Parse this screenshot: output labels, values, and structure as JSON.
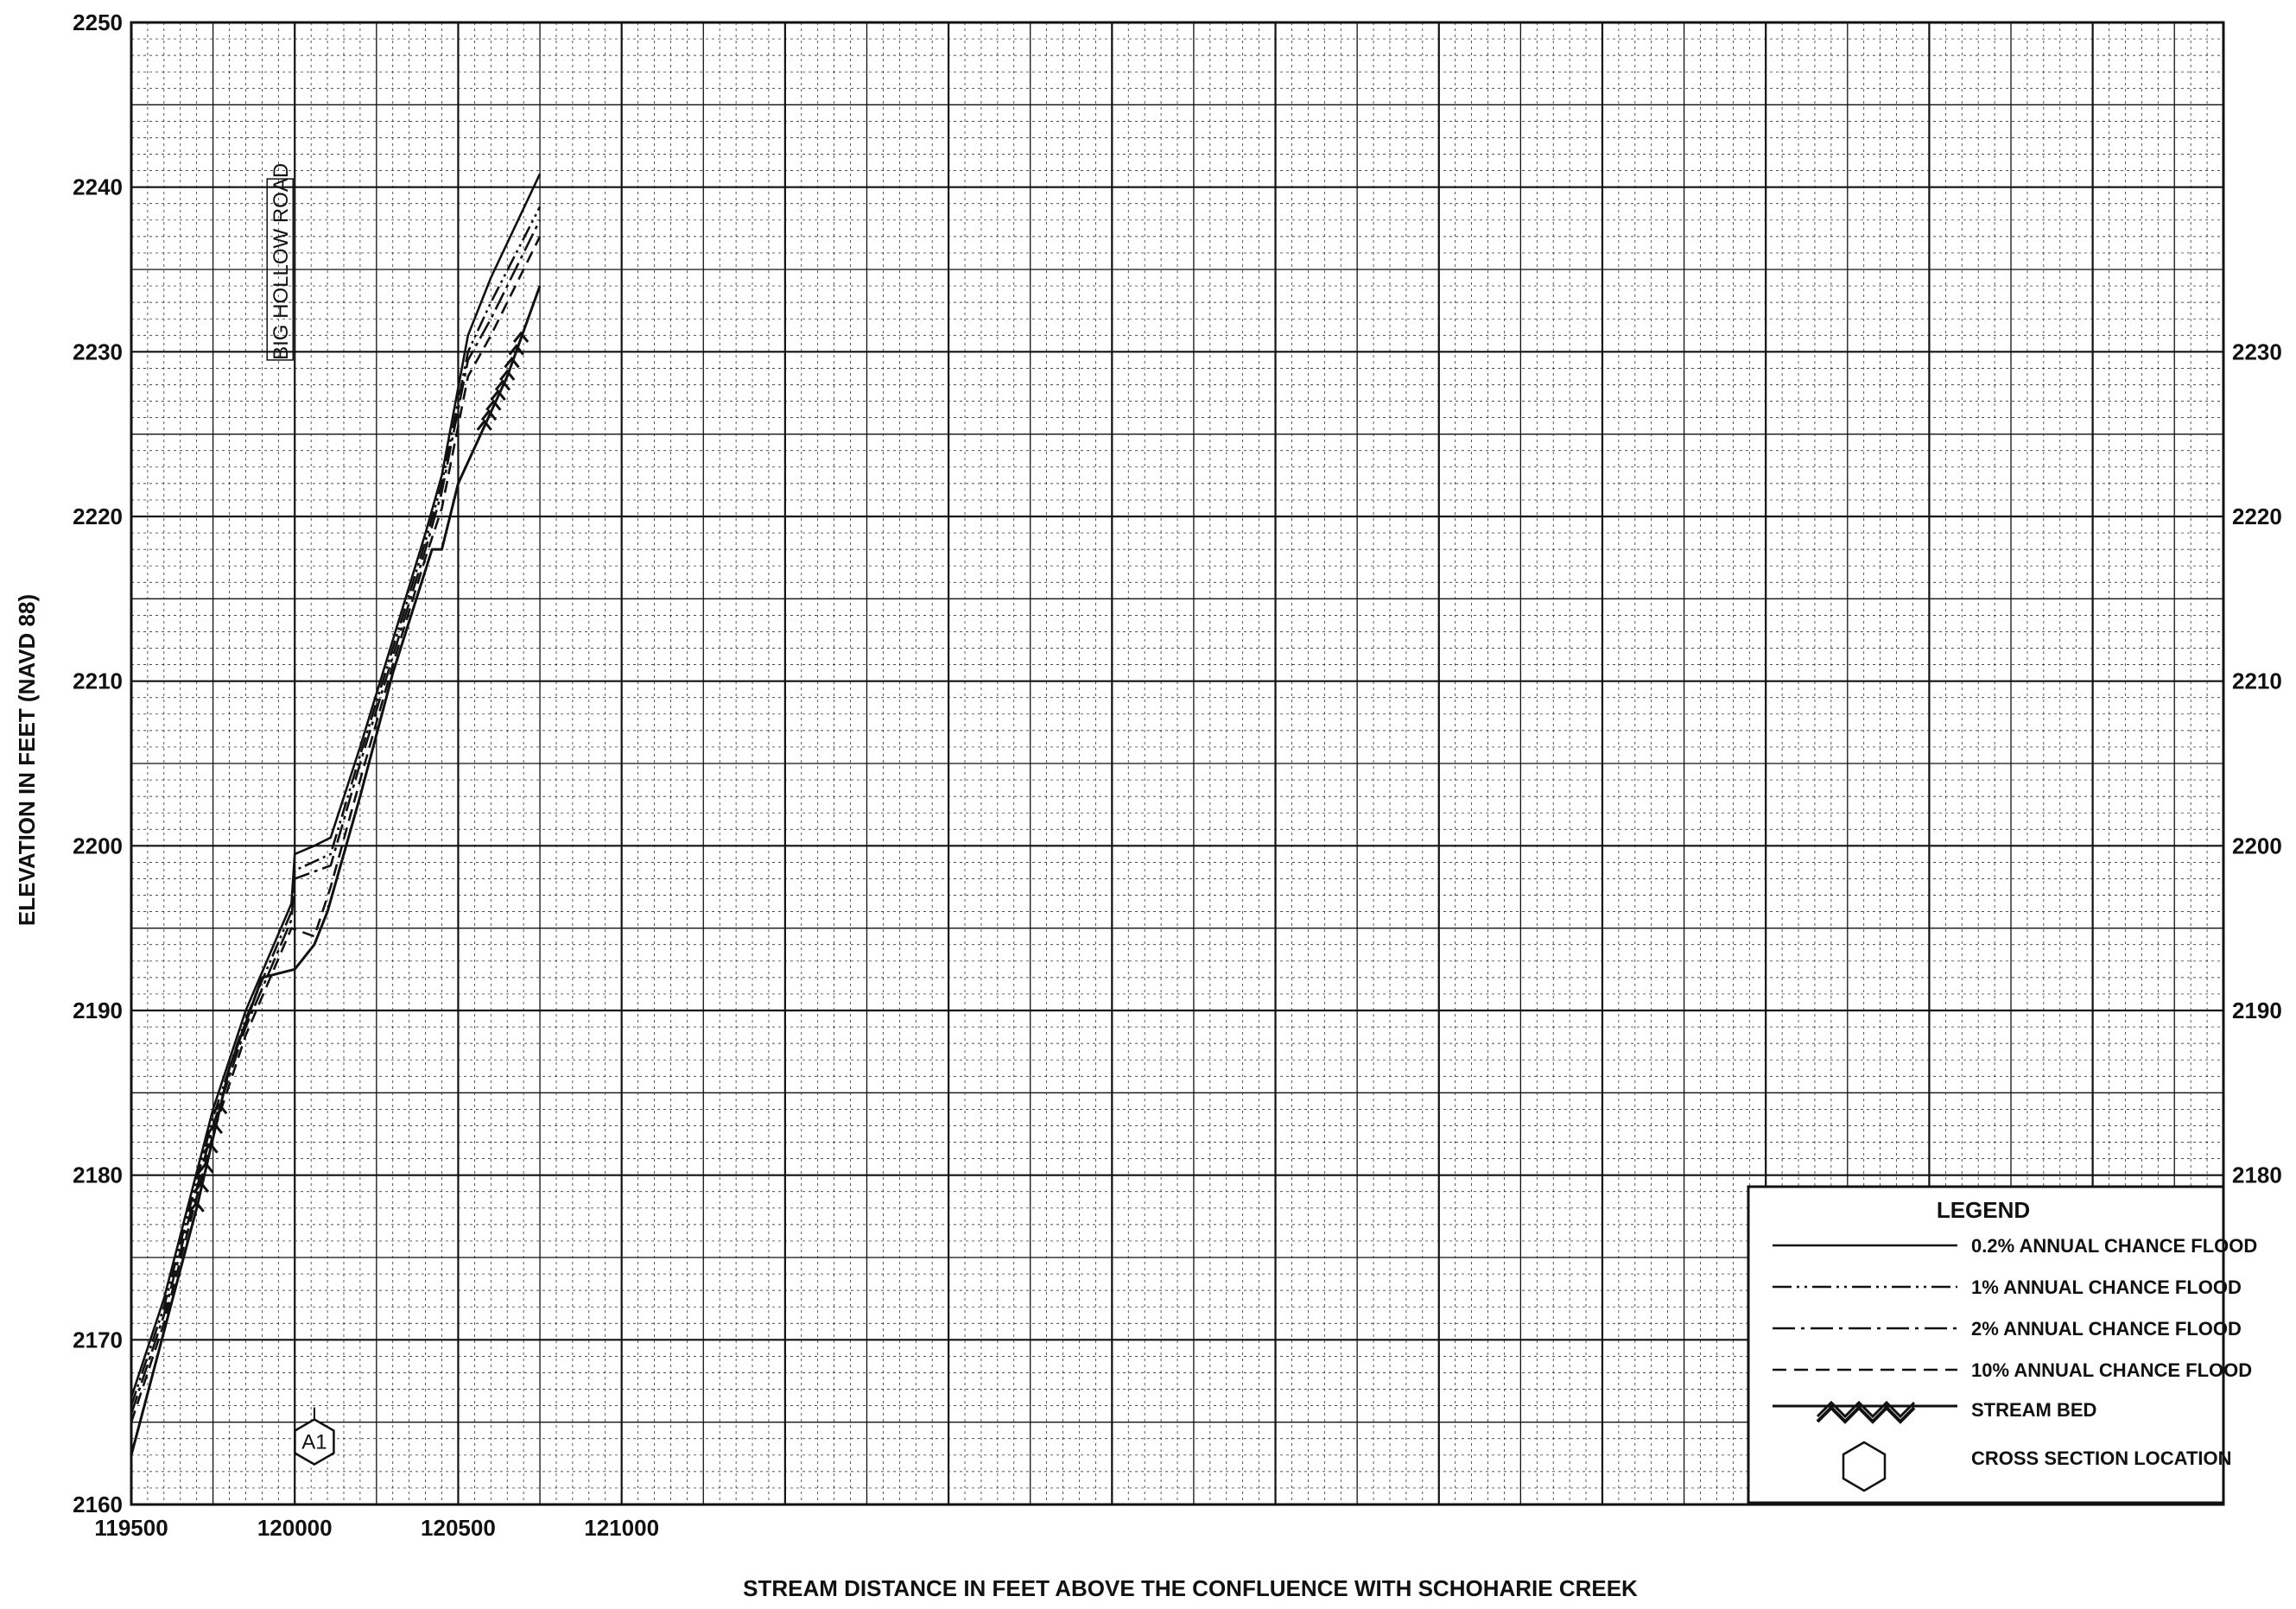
{
  "chart_data": {
    "type": "line",
    "xlabel": "STREAM DISTANCE IN FEET ABOVE THE CONFLUENCE WITH SCHOHARIE CREEK",
    "ylabel": "ELEVATION IN FEET (NAVD 88)",
    "xlim": [
      119500,
      125900
    ],
    "ylim": [
      2160,
      2250
    ],
    "x_ticks": [
      119500,
      120000,
      120500,
      121000
    ],
    "y_ticks_left": [
      2160,
      2170,
      2180,
      2190,
      2200,
      2210,
      2220,
      2230,
      2240,
      2250
    ],
    "y_ticks_right": [
      2180,
      2190,
      2200,
      2210,
      2220,
      2230
    ],
    "grid": true,
    "legend_position": "bottom-right",
    "legend": {
      "title": "LEGEND",
      "entries": [
        {
          "key": "flood_02",
          "label": "0.2% ANNUAL CHANCE FLOOD",
          "style": "solid"
        },
        {
          "key": "flood_1",
          "label": "1% ANNUAL CHANCE FLOOD",
          "style": "dash-dot-dot"
        },
        {
          "key": "flood_2",
          "label": "2% ANNUAL CHANCE FLOOD",
          "style": "dash-dot"
        },
        {
          "key": "flood_10",
          "label": "10% ANNUAL CHANCE FLOOD",
          "style": "dashed"
        },
        {
          "key": "stream_bed",
          "label": "STREAM BED",
          "style": "hatched"
        },
        {
          "key": "xsec",
          "label": "CROSS SECTION LOCATION",
          "style": "hexagon"
        }
      ]
    },
    "annotations": [
      {
        "text": "BIG HOLLOW ROAD",
        "x": 120000,
        "orientation": "vertical"
      }
    ],
    "cross_sections": [
      {
        "label": "A1",
        "x": 120060
      }
    ],
    "series": [
      {
        "key": "flood_02",
        "style": "solid",
        "values": [
          [
            119500,
            2166.5
          ],
          [
            119600,
            2172.5
          ],
          [
            119750,
            2184.0
          ],
          [
            119850,
            2190.0
          ],
          [
            119990,
            2196.5
          ],
          [
            120000,
            2199.5
          ],
          [
            120060,
            2200.0
          ],
          [
            120110,
            2200.5
          ],
          [
            120200,
            2206.0
          ],
          [
            120300,
            2212.5
          ],
          [
            120400,
            2219.0
          ],
          [
            120450,
            2222.5
          ],
          [
            120530,
            2231.0
          ],
          [
            120600,
            2234.5
          ],
          [
            120750,
            2240.8
          ]
        ]
      },
      {
        "key": "flood_1",
        "style": "dash-dot-dot",
        "values": [
          [
            119500,
            2166.0
          ],
          [
            119600,
            2172.0
          ],
          [
            119750,
            2183.5
          ],
          [
            119850,
            2189.5
          ],
          [
            119990,
            2196.0
          ],
          [
            120000,
            2198.5
          ],
          [
            120110,
            2199.5
          ],
          [
            120200,
            2205.5
          ],
          [
            120300,
            2212.0
          ],
          [
            120400,
            2218.5
          ],
          [
            120450,
            2222.0
          ],
          [
            120530,
            2230.0
          ],
          [
            120600,
            2233.0
          ],
          [
            120750,
            2238.8
          ]
        ]
      },
      {
        "key": "flood_2",
        "style": "dash-dot",
        "values": [
          [
            119500,
            2165.5
          ],
          [
            119600,
            2171.5
          ],
          [
            119750,
            2183.0
          ],
          [
            119850,
            2189.0
          ],
          [
            119990,
            2195.5
          ],
          [
            120000,
            2198.0
          ],
          [
            120110,
            2198.8
          ],
          [
            120200,
            2205.0
          ],
          [
            120300,
            2211.5
          ],
          [
            120400,
            2218.0
          ],
          [
            120450,
            2221.5
          ],
          [
            120530,
            2229.5
          ],
          [
            120600,
            2232.0
          ],
          [
            120750,
            2238.0
          ]
        ]
      },
      {
        "key": "flood_10",
        "style": "dashed",
        "values": [
          [
            119500,
            2165.0
          ],
          [
            119600,
            2171.0
          ],
          [
            119750,
            2182.5
          ],
          [
            119850,
            2188.5
          ],
          [
            119990,
            2195.0
          ],
          [
            120060,
            2194.5
          ],
          [
            120110,
            2197.5
          ],
          [
            120200,
            2204.0
          ],
          [
            120300,
            2211.0
          ],
          [
            120400,
            2217.5
          ],
          [
            120450,
            2220.5
          ],
          [
            120530,
            2228.5
          ],
          [
            120600,
            2231.0
          ],
          [
            120750,
            2237.0
          ]
        ]
      },
      {
        "key": "stream_bed",
        "style": "hatched",
        "values": [
          [
            119500,
            2163.0
          ],
          [
            119600,
            2170.5
          ],
          [
            119700,
            2178.0
          ],
          [
            119800,
            2186.5
          ],
          [
            119900,
            2192.0
          ],
          [
            120000,
            2192.5
          ],
          [
            120060,
            2194.0
          ],
          [
            120100,
            2196.0
          ],
          [
            120200,
            2203.0
          ],
          [
            120300,
            2210.5
          ],
          [
            120420,
            2218.0
          ],
          [
            120450,
            2218.0
          ],
          [
            120500,
            2222.0
          ],
          [
            120650,
            2228.5
          ],
          [
            120750,
            2234.0
          ]
        ]
      }
    ],
    "stream_bed_hatch_spans": [
      [
        119700,
        119770
      ],
      [
        120580,
        120700
      ]
    ]
  }
}
